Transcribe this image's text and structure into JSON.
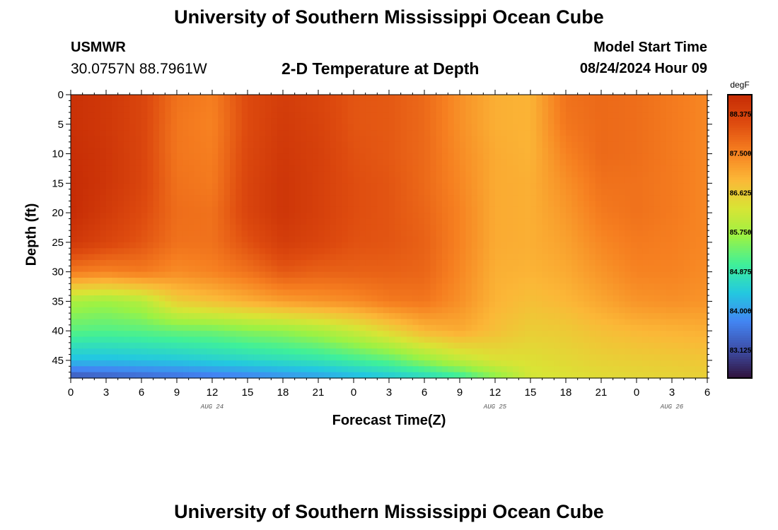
{
  "header": {
    "title": "University of Southern Mississippi Ocean Cube",
    "bottom_title": "University of Southern Mississippi Ocean Cube",
    "station": "USMWR",
    "coordinates": "30.0757N  88.7961W",
    "subtitle": "2-D Temperature at Depth",
    "model_start_label": "Model Start Time",
    "model_start_time": "08/24/2024 Hour 09"
  },
  "chart_data": {
    "type": "heatmap",
    "title": "2-D Temperature at Depth",
    "xlabel": "Forecast Time(Z)",
    "ylabel": "Depth (ft)",
    "x_hours_range": [
      0,
      54
    ],
    "y_depth_range": [
      0,
      48
    ],
    "y_ticks": [
      0,
      5,
      10,
      15,
      20,
      25,
      30,
      35,
      40,
      45
    ],
    "x_tick_labels": [
      "0",
      "3",
      "6",
      "9",
      "12",
      "15",
      "18",
      "21",
      "0",
      "3",
      "6",
      "9",
      "12",
      "15",
      "18",
      "21",
      "0",
      "3",
      "6"
    ],
    "date_labels": [
      {
        "hour": 12,
        "text": "AUG 24"
      },
      {
        "hour": 36,
        "text": "AUG 25"
      },
      {
        "hour": 51,
        "text": "AUG 26"
      }
    ],
    "colorbar": {
      "unit": "degF",
      "min": 82.5,
      "max": 88.8,
      "tick_values": [
        "88.375",
        "87.500",
        "86.625",
        "85.750",
        "84.875",
        "84.000",
        "83.125"
      ],
      "colormap": [
        "#30123b",
        "#3e4ea8",
        "#4285f3",
        "#23c8e0",
        "#3ff09a",
        "#9bf244",
        "#d9e435",
        "#fbb737",
        "#f67f20",
        "#de4b0f",
        "#c62c05"
      ]
    },
    "profile_hours": [
      0,
      3,
      6,
      9,
      12,
      15,
      18,
      21,
      24,
      27,
      30,
      33,
      36,
      39,
      42,
      45,
      48,
      51,
      54
    ],
    "profile_depths": [
      0,
      5,
      10,
      15,
      20,
      25,
      30,
      35,
      40,
      45,
      48
    ],
    "temperature_degF": [
      [
        88.7,
        88.7,
        88.75,
        88.8,
        88.8,
        88.55,
        87.6,
        85.8,
        85.2,
        84.3,
        83.2
      ],
      [
        88.55,
        88.55,
        88.6,
        88.6,
        88.5,
        88.3,
        87.5,
        85.7,
        85.15,
        84.3,
        83.3
      ],
      [
        88.3,
        88.3,
        88.3,
        88.3,
        88.2,
        88.05,
        87.6,
        85.9,
        85.2,
        84.35,
        83.4
      ],
      [
        87.7,
        87.65,
        87.65,
        87.7,
        87.75,
        87.7,
        87.4,
        86.6,
        85.3,
        84.4,
        83.5
      ],
      [
        87.55,
        87.5,
        87.55,
        87.6,
        87.7,
        87.7,
        87.5,
        86.8,
        85.35,
        84.5,
        83.6
      ],
      [
        88.2,
        88.2,
        88.25,
        88.3,
        88.3,
        88.1,
        87.7,
        87.0,
        85.5,
        84.6,
        83.7
      ],
      [
        88.45,
        88.5,
        88.55,
        88.6,
        88.6,
        88.45,
        88.0,
        87.2,
        85.6,
        84.7,
        83.85
      ],
      [
        88.3,
        88.35,
        88.4,
        88.4,
        88.4,
        88.3,
        87.9,
        87.3,
        85.8,
        84.8,
        84.0
      ],
      [
        88.05,
        88.05,
        88.1,
        88.15,
        88.15,
        88.1,
        87.9,
        87.4,
        86.1,
        85.0,
        84.2
      ],
      [
        88.0,
        88.0,
        88.0,
        88.05,
        88.05,
        88.05,
        87.9,
        87.6,
        86.5,
        85.2,
        84.4
      ],
      [
        87.8,
        87.8,
        87.8,
        87.8,
        87.85,
        87.9,
        87.85,
        87.65,
        86.9,
        85.6,
        84.6
      ],
      [
        87.35,
        87.35,
        87.4,
        87.45,
        87.5,
        87.5,
        87.45,
        87.35,
        87.05,
        86.0,
        84.9
      ],
      [
        87.0,
        87.0,
        87.05,
        87.05,
        87.05,
        87.05,
        87.0,
        86.95,
        86.8,
        86.3,
        85.5
      ],
      [
        86.95,
        86.95,
        86.95,
        87.0,
        87.0,
        87.0,
        86.95,
        86.8,
        86.6,
        86.35,
        86.2
      ],
      [
        87.7,
        87.65,
        87.5,
        87.35,
        87.25,
        87.15,
        87.05,
        86.9,
        86.65,
        86.45,
        86.3
      ],
      [
        87.8,
        87.8,
        87.8,
        87.7,
        87.6,
        87.45,
        87.3,
        87.1,
        86.8,
        86.55,
        86.4
      ],
      [
        87.75,
        87.75,
        87.75,
        87.7,
        87.7,
        87.6,
        87.5,
        87.3,
        86.9,
        86.6,
        86.45
      ],
      [
        87.6,
        87.6,
        87.6,
        87.6,
        87.6,
        87.55,
        87.5,
        87.35,
        86.95,
        86.65,
        86.5
      ],
      [
        87.45,
        87.45,
        87.45,
        87.45,
        87.45,
        87.45,
        87.4,
        87.3,
        87.0,
        86.7,
        86.55
      ]
    ]
  }
}
